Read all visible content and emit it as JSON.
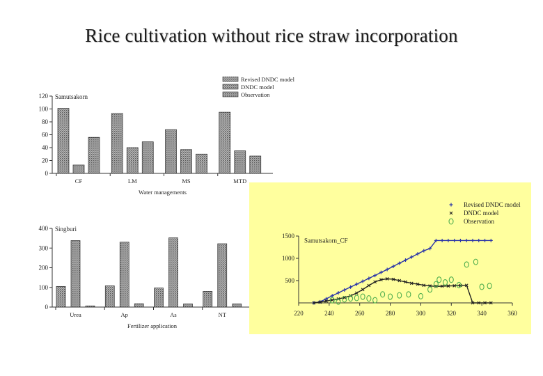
{
  "slide": {
    "title": "Rice cultivation without rice straw incorporation"
  },
  "chart_data": [
    {
      "type": "bar",
      "title": "Samutsakorn",
      "xlabel": "Water managements",
      "ylabel": "",
      "ylim": [
        0,
        120
      ],
      "yticks": [
        0,
        20,
        40,
        60,
        80,
        100,
        120
      ],
      "categories": [
        "CF",
        "LM",
        "MS",
        "MTD"
      ],
      "series": [
        {
          "name": "Revised DNDC model",
          "values": [
            101,
            93,
            68,
            95
          ]
        },
        {
          "name": "DNDC model",
          "values": [
            13,
            40,
            37,
            35
          ]
        },
        {
          "name": "Observation",
          "values": [
            56,
            49,
            30,
            27
          ]
        }
      ],
      "legend_position": "top-right",
      "grid": false,
      "colors": {
        "bar_fill": "#9c9c9c",
        "bar_stroke": "#2b2b2b",
        "axis": "#333333"
      }
    },
    {
      "type": "bar",
      "title": "Singburi",
      "xlabel": "Fertilizer application",
      "ylabel": "",
      "ylim": [
        0,
        400
      ],
      "yticks": [
        0,
        100,
        200,
        300,
        400
      ],
      "categories": [
        "Urea",
        "Ap",
        "As",
        "NT"
      ],
      "series": [
        {
          "name": "Revised DNDC model",
          "values": [
            105,
            108,
            97,
            80
          ]
        },
        {
          "name": "DNDC model",
          "values": [
            338,
            330,
            352,
            322
          ]
        },
        {
          "name": "Observation",
          "values": [
            6,
            17,
            16,
            16
          ]
        }
      ],
      "grid": false,
      "colors": {
        "bar_fill": "#9c9c9c",
        "bar_stroke": "#2b2b2b",
        "axis": "#333333"
      }
    },
    {
      "type": "scatter",
      "title": "Samutsakorn_CF",
      "xlabel": "",
      "ylabel": "",
      "xlim": [
        220,
        360
      ],
      "ylim": [
        0,
        1500
      ],
      "xticks": [
        220,
        240,
        260,
        280,
        300,
        320,
        340,
        360
      ],
      "yticks": [
        500,
        1000,
        1500
      ],
      "series": [
        {
          "name": "Revised DNDC model",
          "marker": "+",
          "color": "#2a35a8",
          "x": [
            230,
            234,
            238,
            242,
            246,
            250,
            254,
            258,
            262,
            266,
            270,
            274,
            278,
            282,
            286,
            290,
            294,
            298,
            302,
            306,
            310,
            314,
            318,
            322,
            326,
            330,
            334,
            338,
            342,
            346
          ],
          "y": [
            0,
            25,
            90,
            160,
            225,
            290,
            355,
            420,
            485,
            550,
            615,
            685,
            750,
            820,
            890,
            960,
            1030,
            1100,
            1170,
            1220,
            1400,
            1400,
            1400,
            1400,
            1400,
            1400,
            1400,
            1400,
            1400,
            1400
          ]
        },
        {
          "name": "DNDC model",
          "marker": "x",
          "color": "#222222",
          "x": [
            230,
            234,
            238,
            242,
            246,
            250,
            254,
            258,
            262,
            266,
            270,
            274,
            278,
            282,
            286,
            290,
            294,
            298,
            302,
            306,
            310,
            314,
            318,
            322,
            326,
            330,
            334,
            338,
            342,
            346
          ],
          "y": [
            0,
            15,
            40,
            65,
            90,
            120,
            160,
            220,
            300,
            390,
            470,
            520,
            540,
            530,
            500,
            470,
            440,
            420,
            395,
            380,
            370,
            375,
            380,
            385,
            390,
            395,
            0,
            0,
            0,
            0
          ]
        },
        {
          "name": "Observation",
          "marker": "o",
          "color": "#4fae4f",
          "x": [
            242,
            246,
            250,
            254,
            258,
            262,
            266,
            270,
            275,
            280,
            286,
            292,
            300,
            306,
            310,
            312,
            316,
            320,
            325,
            330,
            336,
            340,
            345
          ],
          "y": [
            60,
            30,
            80,
            100,
            110,
            140,
            100,
            60,
            190,
            140,
            170,
            190,
            150,
            300,
            420,
            520,
            460,
            520,
            400,
            860,
            920,
            360,
            380
          ]
        }
      ],
      "legend_position": "top-right",
      "grid": false,
      "colors": {
        "background": "#ffff9e",
        "axis": "#333333"
      }
    }
  ]
}
